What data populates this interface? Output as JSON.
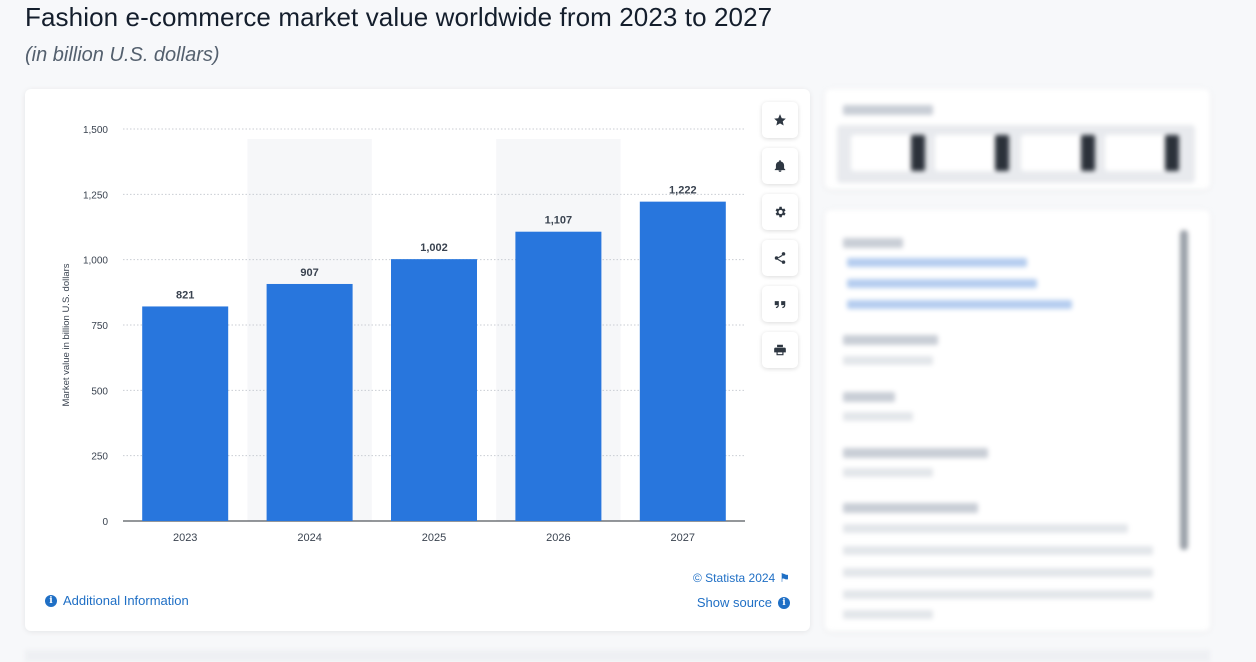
{
  "header": {
    "title": "Fashion e-commerce market value worldwide from 2023 to 2027",
    "subtitle": "(in billion U.S. dollars)"
  },
  "chart_data": {
    "type": "bar",
    "categories": [
      "2023",
      "2024",
      "2025",
      "2026",
      "2027"
    ],
    "values": [
      821,
      907,
      1002,
      1107,
      1222
    ],
    "value_labels": [
      "821",
      "907",
      "1,002",
      "1,107",
      "1,222"
    ],
    "ylabel": "Market value in billion U.S. dollars",
    "xlabel": "",
    "ylim": [
      0,
      1500
    ],
    "yticks": [
      0,
      250,
      500,
      750,
      1000,
      1250,
      1500
    ],
    "ytick_labels": [
      "0",
      "250",
      "500",
      "750",
      "1,000",
      "1,250",
      "1,500"
    ],
    "grid": true,
    "bar_color": "#2876dd",
    "alt_column_shading": true
  },
  "toolbar": {
    "icons": [
      "star-icon",
      "bell-icon",
      "gear-icon",
      "share-icon",
      "quote-icon",
      "print-icon"
    ]
  },
  "footer": {
    "copyright": "© Statista 2024",
    "additional_info": "Additional Information",
    "show_source": "Show source"
  },
  "colors": {
    "accent": "#1f6fc5",
    "bar": "#2876dd"
  }
}
